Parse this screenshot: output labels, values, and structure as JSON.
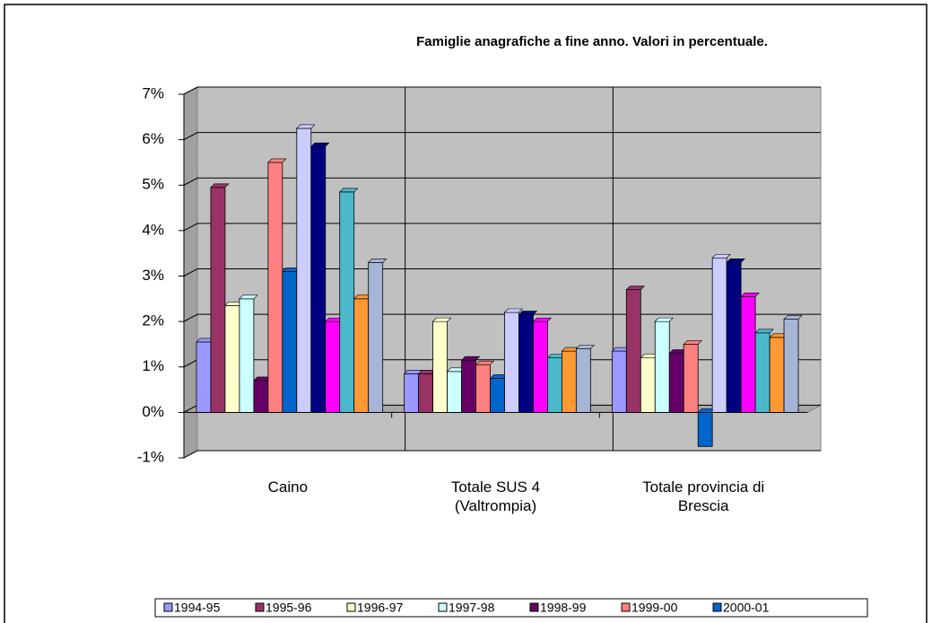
{
  "chart_data": {
    "type": "bar",
    "title": "Famiglie anagrafiche a fine anno. Valori in percentuale.",
    "categories": [
      "Caino",
      "Totale SUS 4 (Valtrompia)",
      "Totale provincia di Brescia"
    ],
    "ylim": [
      -1,
      7
    ],
    "yticks": [
      {
        "value": -1,
        "label": "-1%"
      },
      {
        "value": 0,
        "label": "0%"
      },
      {
        "value": 1,
        "label": "1%"
      },
      {
        "value": 2,
        "label": "2%"
      },
      {
        "value": 3,
        "label": "3%"
      },
      {
        "value": 4,
        "label": "4%"
      },
      {
        "value": 5,
        "label": "5%"
      },
      {
        "value": 6,
        "label": "6%"
      },
      {
        "value": 7,
        "label": "7%"
      }
    ],
    "grid": true,
    "legend": "bottom",
    "series": [
      {
        "name": "1994-95",
        "color": "#9999ff",
        "values": [
          1.55,
          0.85,
          1.35
        ]
      },
      {
        "name": "1995-96",
        "color": "#993366",
        "values": [
          4.95,
          0.85,
          2.7
        ]
      },
      {
        "name": "1996-97",
        "color": "#ffffcc",
        "values": [
          2.35,
          2.0,
          1.2
        ]
      },
      {
        "name": "1997-98",
        "color": "#ccffff",
        "values": [
          2.5,
          0.9,
          2.0
        ]
      },
      {
        "name": "1998-99",
        "color": "#660066",
        "values": [
          0.7,
          1.15,
          1.3
        ]
      },
      {
        "name": "1999-00",
        "color": "#ff8080",
        "values": [
          5.5,
          1.05,
          1.5
        ]
      },
      {
        "name": "2000-01",
        "color": "#0066cc",
        "values": [
          3.1,
          0.75,
          -0.75
        ]
      },
      {
        "color": "#ccccff",
        "values": [
          6.25,
          2.2,
          3.4
        ]
      },
      {
        "color": "#000080",
        "values": [
          5.85,
          2.15,
          3.3
        ]
      },
      {
        "color": "#ff00ff",
        "values": [
          2.0,
          2.0,
          2.55
        ]
      },
      {
        "color": "#4bb8cc",
        "values": [
          4.85,
          1.2,
          1.75
        ]
      },
      {
        "color": "#ff9933",
        "values": [
          2.5,
          1.35,
          1.65
        ]
      },
      {
        "color": "#a6b4d6",
        "values": [
          3.3,
          1.4,
          2.05
        ]
      }
    ]
  }
}
